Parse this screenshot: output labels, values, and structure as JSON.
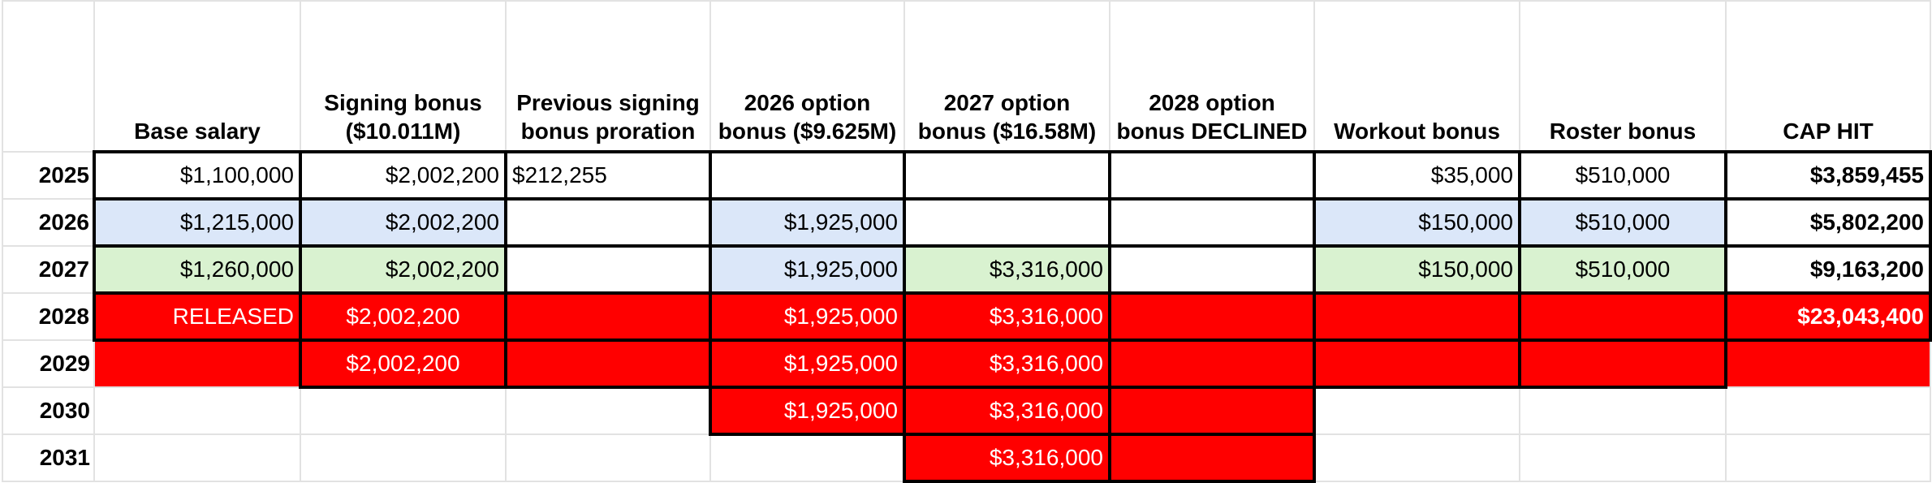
{
  "colors": {
    "red": "#ff0000",
    "blue": "#dbe7f9",
    "green": "#d9f2d0",
    "white": "#ffffff",
    "text": "#000000",
    "text_on_red": "#ffffff"
  },
  "headers": [
    "",
    "Base salary",
    "Signing bonus ($10.011M)",
    "Previous signing bonus proration",
    "2026 option bonus ($9.625M)",
    "2027 option bonus ($16.58M)",
    "2028 option bonus DECLINED",
    "Workout bonus",
    "Roster bonus",
    "CAP HIT"
  ],
  "rows": [
    {
      "year": "2025",
      "cells": [
        {
          "v": "$1,100,000",
          "bg": "white",
          "a": "right",
          "b": 1
        },
        {
          "v": "$2,002,200",
          "bg": "white",
          "a": "right",
          "b": 1
        },
        {
          "v": "$212,255",
          "bg": "white",
          "a": "left",
          "b": 1
        },
        {
          "v": "",
          "bg": "white",
          "b": 1
        },
        {
          "v": "",
          "bg": "white",
          "b": 1
        },
        {
          "v": "",
          "bg": "white",
          "b": 1
        },
        {
          "v": "$35,000",
          "bg": "white",
          "a": "right",
          "b": 1
        },
        {
          "v": "$510,000",
          "bg": "white",
          "a": "center",
          "b": 1
        },
        {
          "v": "$3,859,455",
          "bg": "white",
          "a": "right",
          "b": 1,
          "bold": 1
        }
      ]
    },
    {
      "year": "2026",
      "cells": [
        {
          "v": "$1,215,000",
          "bg": "blue",
          "a": "right",
          "b": 1
        },
        {
          "v": "$2,002,200",
          "bg": "blue",
          "a": "right",
          "b": 1
        },
        {
          "v": "",
          "bg": "white",
          "b": 1
        },
        {
          "v": "$1,925,000",
          "bg": "blue",
          "a": "right",
          "b": 1
        },
        {
          "v": "",
          "bg": "white",
          "b": 1
        },
        {
          "v": "",
          "bg": "white",
          "b": 1
        },
        {
          "v": "$150,000",
          "bg": "blue",
          "a": "right",
          "b": 1
        },
        {
          "v": "$510,000",
          "bg": "blue",
          "a": "center",
          "b": 1
        },
        {
          "v": "$5,802,200",
          "bg": "white",
          "a": "right",
          "b": 1,
          "bold": 1
        }
      ]
    },
    {
      "year": "2027",
      "cells": [
        {
          "v": "$1,260,000",
          "bg": "green",
          "a": "right",
          "b": 1
        },
        {
          "v": "$2,002,200",
          "bg": "green",
          "a": "right",
          "b": 1
        },
        {
          "v": "",
          "bg": "white",
          "b": 1
        },
        {
          "v": "$1,925,000",
          "bg": "blue",
          "a": "right",
          "b": 1
        },
        {
          "v": "$3,316,000",
          "bg": "green",
          "a": "right",
          "b": 1
        },
        {
          "v": "",
          "bg": "white",
          "b": 1
        },
        {
          "v": "$150,000",
          "bg": "green",
          "a": "right",
          "b": 1
        },
        {
          "v": "$510,000",
          "bg": "green",
          "a": "center",
          "b": 1
        },
        {
          "v": "$9,163,200",
          "bg": "white",
          "a": "right",
          "b": 1,
          "bold": 1
        }
      ]
    },
    {
      "year": "2028",
      "cells": [
        {
          "v": "RELEASED",
          "bg": "red",
          "a": "right",
          "b": 1
        },
        {
          "v": "$2,002,200",
          "bg": "red",
          "a": "center",
          "b": 1
        },
        {
          "v": "",
          "bg": "red",
          "b": 1
        },
        {
          "v": "$1,925,000",
          "bg": "red",
          "a": "right",
          "b": 1
        },
        {
          "v": "$3,316,000",
          "bg": "red",
          "a": "right",
          "b": 1
        },
        {
          "v": "",
          "bg": "red",
          "b": 1
        },
        {
          "v": "",
          "bg": "red",
          "b": 1
        },
        {
          "v": "",
          "bg": "red",
          "b": 1
        },
        {
          "v": "$23,043,400",
          "bg": "red",
          "a": "right",
          "b": 1,
          "bold": 1
        }
      ]
    },
    {
      "year": "2029",
      "cells": [
        {
          "v": "",
          "bg": "red",
          "b": 0
        },
        {
          "v": "$2,002,200",
          "bg": "red",
          "a": "center",
          "b": 1
        },
        {
          "v": "",
          "bg": "red",
          "b": 1
        },
        {
          "v": "$1,925,000",
          "bg": "red",
          "a": "right",
          "b": 1
        },
        {
          "v": "$3,316,000",
          "bg": "red",
          "a": "right",
          "b": 1
        },
        {
          "v": "",
          "bg": "red",
          "b": 1
        },
        {
          "v": "",
          "bg": "red",
          "b": 1
        },
        {
          "v": "",
          "bg": "red",
          "b": 1
        },
        {
          "v": "",
          "bg": "red",
          "b": 0
        }
      ]
    },
    {
      "year": "2030",
      "cells": [
        {
          "v": "",
          "bg": "white",
          "b": 0
        },
        {
          "v": "",
          "bg": "white",
          "b": 0
        },
        {
          "v": "",
          "bg": "white",
          "b": 0
        },
        {
          "v": "$1,925,000",
          "bg": "red",
          "a": "right",
          "b": 1
        },
        {
          "v": "$3,316,000",
          "bg": "red",
          "a": "right",
          "b": 1
        },
        {
          "v": "",
          "bg": "red",
          "b": 1
        },
        {
          "v": "",
          "bg": "white",
          "b": 0
        },
        {
          "v": "",
          "bg": "white",
          "b": 0
        },
        {
          "v": "",
          "bg": "white",
          "b": 0
        }
      ]
    },
    {
      "year": "2031",
      "cells": [
        {
          "v": "",
          "bg": "white",
          "b": 0
        },
        {
          "v": "",
          "bg": "white",
          "b": 0
        },
        {
          "v": "",
          "bg": "white",
          "b": 0
        },
        {
          "v": "",
          "bg": "white",
          "b": 0
        },
        {
          "v": "$3,316,000",
          "bg": "red",
          "a": "right",
          "b": 1
        },
        {
          "v": "",
          "bg": "red",
          "b": 1
        },
        {
          "v": "",
          "bg": "white",
          "b": 0
        },
        {
          "v": "",
          "bg": "white",
          "b": 0
        },
        {
          "v": "",
          "bg": "white",
          "b": 0
        }
      ]
    }
  ]
}
